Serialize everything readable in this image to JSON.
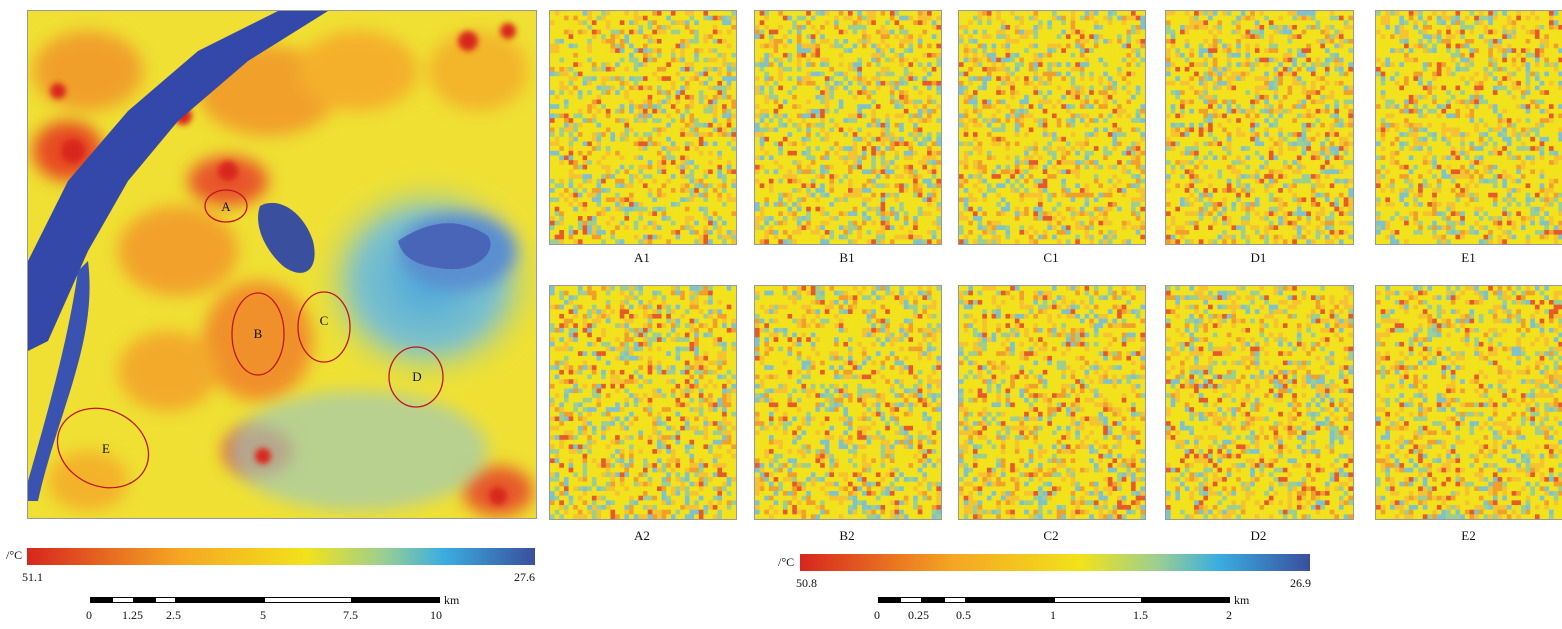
{
  "main_map": {
    "region_labels": [
      "A",
      "B",
      "C",
      "D",
      "E"
    ],
    "colorbar": {
      "unit": "/°C",
      "max": "51.1",
      "min": "27.6"
    },
    "scalebar": {
      "ticks": [
        "0",
        "1.25",
        "2.5",
        "5",
        "7.5",
        "10"
      ],
      "unit": "km"
    }
  },
  "detail_panels": {
    "row1": [
      "A1",
      "B1",
      "C1",
      "D1",
      "E1"
    ],
    "row2": [
      "A2",
      "B2",
      "C2",
      "D2",
      "E2"
    ],
    "colorbar": {
      "unit": "/°C",
      "max": "50.8",
      "min": "26.9"
    },
    "scalebar": {
      "ticks": [
        "0",
        "0.25",
        "0.5",
        "1",
        "1.5",
        "2"
      ],
      "unit": "km"
    }
  },
  "colors": {
    "hot": "#d7261e",
    "warm": "#f5a623",
    "mid": "#f2e21b",
    "cool": "#3aaee0",
    "cold": "#3a4f9e",
    "water": "#3348a8"
  }
}
